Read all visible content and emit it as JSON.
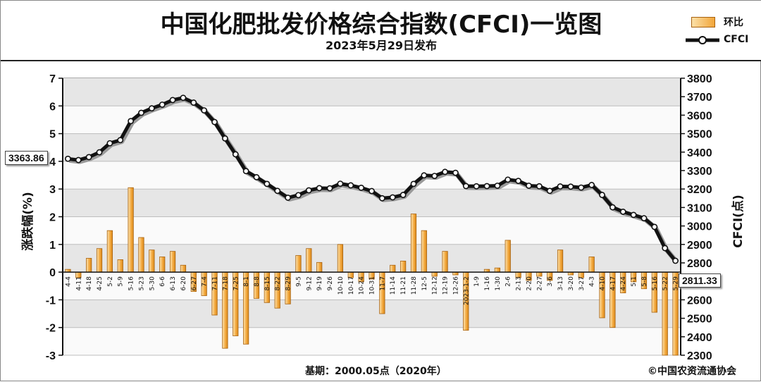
{
  "header": {
    "title": "中国化肥批发价格综合指数(CFCI)一览图",
    "subtitle": "2023年5月29日发布"
  },
  "legend": {
    "bar_label": "环比",
    "line_label": "CFCI",
    "placement": "top-right"
  },
  "footer": {
    "base_note": "基期：2000.05点（2020年）",
    "copyright": "©中国农资流通协会"
  },
  "callouts": {
    "start_value": "3363.86",
    "end_value": "2811.33"
  },
  "colors": {
    "bar_fill": "#f2a63a",
    "bar_edge": "#a8620f",
    "line": "#111111",
    "grid_band": "#e6e6e6"
  },
  "chart_data": {
    "type": "bar",
    "title": "中国化肥批发价格综合指数(CFCI)一览图",
    "ylabel_left": "涨跌幅(%)",
    "ylabel_right": "CFCI(点)",
    "ylim_left": [
      -3,
      7
    ],
    "ylim_right": [
      2300,
      3800
    ],
    "yticks_left": [
      "-3",
      "-2",
      "-1",
      "0",
      "1",
      "2",
      "3",
      "4",
      "5",
      "6",
      "7"
    ],
    "yticks_right": [
      "2300",
      "2400",
      "2500",
      "2600",
      "2700",
      "2800",
      "2900",
      "3000",
      "3100",
      "3200",
      "3300",
      "3400",
      "3500",
      "3600",
      "3700",
      "3800"
    ],
    "grid": true,
    "categories": [
      "4-4",
      "4-11",
      "4-18",
      "4-25",
      "5-2",
      "5-9",
      "5-16",
      "5-23",
      "5-30",
      "6-6",
      "6-13",
      "6-20",
      "6-27",
      "7-4",
      "7-11",
      "7-18",
      "7-25",
      "8-1",
      "8-8",
      "8-15",
      "8-22",
      "8-29",
      "9-5",
      "9-12",
      "9-19",
      "9-26",
      "10-10",
      "10-17",
      "10-24",
      "10-31",
      "11-7",
      "11-14",
      "11-21",
      "11-28",
      "12-5",
      "12-12",
      "12-19",
      "12-26",
      "2023-1-2",
      "1-9",
      "1-16",
      "1-30",
      "2-6",
      "2-13",
      "2-20",
      "2-27",
      "3-6",
      "3-13",
      "3-20",
      "3-27",
      "4-3",
      "4-10",
      "4-17",
      "4-24",
      "5-1",
      "5-8",
      "5-16",
      "5-22",
      "5-29"
    ],
    "series": [
      {
        "name": "环比",
        "kind": "bar",
        "axis": "left",
        "values": [
          0.1,
          -0.2,
          0.5,
          0.85,
          1.5,
          0.45,
          3.05,
          1.25,
          0.8,
          0.55,
          0.75,
          0.25,
          -0.7,
          -0.85,
          -1.55,
          -2.75,
          -2.3,
          -2.6,
          -0.95,
          -1.1,
          -1.3,
          -1.15,
          0.6,
          0.85,
          0.35,
          0.0,
          1.0,
          -0.2,
          -0.35,
          -0.25,
          -1.5,
          0.25,
          0.4,
          2.1,
          1.5,
          -0.15,
          0.75,
          -0.1,
          -2.1,
          0.0,
          0.1,
          0.15,
          1.15,
          -0.2,
          -0.3,
          -0.15,
          -0.3,
          0.8,
          -0.1,
          -0.2,
          0.55,
          -1.65,
          -2.0,
          -0.75,
          -0.35,
          -0.6,
          -1.45,
          -3.0,
          -3.0
        ]
      },
      {
        "name": "CFCI",
        "kind": "line",
        "axis": "right",
        "values": [
          3363.86,
          3357,
          3373,
          3399,
          3448,
          3465,
          3568,
          3613,
          3637,
          3657,
          3682,
          3694,
          3668,
          3626,
          3563,
          3474,
          3388,
          3297,
          3264,
          3228,
          3190,
          3153,
          3167,
          3193,
          3205,
          3204,
          3229,
          3220,
          3207,
          3189,
          3150,
          3155,
          3168,
          3228,
          3274,
          3271,
          3293,
          3288,
          3216,
          3215,
          3216,
          3218,
          3251,
          3244,
          3218,
          3215,
          3190,
          3214,
          3213,
          3208,
          3222,
          3168,
          3101,
          3077,
          3060,
          3042,
          2995,
          2880,
          2811.33
        ]
      }
    ]
  }
}
